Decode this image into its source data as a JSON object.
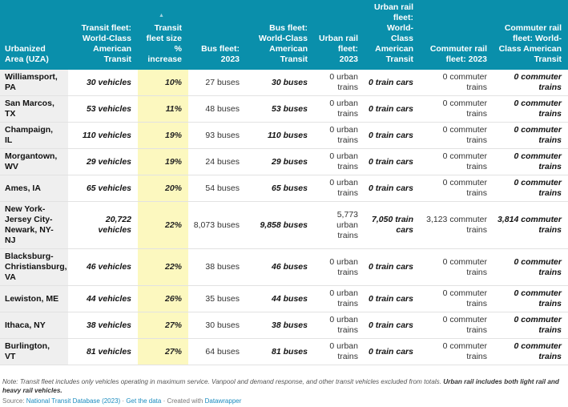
{
  "headers": [
    "Urbanized Area (UZA)",
    "Transit fleet: World-Class American Transit",
    "Transit fleet size % increase",
    "Bus fleet: 2023",
    "Bus fleet: World-Class American Transit",
    "Urban rail fleet: 2023",
    "Urban rail fleet: World-Class American Transit",
    "Commuter rail fleet: 2023",
    "Commuter rail fleet: World-Class American Transit"
  ],
  "sort_icon": "triangle-up-icon",
  "colors": {
    "header": "#0a8fab",
    "highlight": "#fcf8bf",
    "name_col": "#efefef"
  },
  "rows": [
    [
      "Williamsport, PA",
      "30 vehicles",
      "10%",
      "27 buses",
      "30 buses",
      "0 urban trains",
      "0 train cars",
      "0 commuter trains",
      "0 commuter trains"
    ],
    [
      "San Marcos, TX",
      "53 vehicles",
      "11%",
      "48 buses",
      "53 buses",
      "0 urban trains",
      "0 train cars",
      "0 commuter trains",
      "0 commuter trains"
    ],
    [
      "Champaign, IL",
      "110 vehicles",
      "19%",
      "93 buses",
      "110 buses",
      "0 urban trains",
      "0 train cars",
      "0 commuter trains",
      "0 commuter trains"
    ],
    [
      "Morgantown, WV",
      "29 vehicles",
      "19%",
      "24 buses",
      "29 buses",
      "0 urban trains",
      "0 train cars",
      "0 commuter trains",
      "0 commuter trains"
    ],
    [
      "Ames, IA",
      "65 vehicles",
      "20%",
      "54 buses",
      "65 buses",
      "0 urban trains",
      "0 train cars",
      "0 commuter trains",
      "0 commuter trains"
    ],
    [
      "New York-Jersey City-Newark, NY-NJ",
      "20,722 vehicles",
      "22%",
      "8,073 buses",
      "9,858 buses",
      "5,773 urban trains",
      "7,050 train cars",
      "3,123 commuter trains",
      "3,814 commuter trains"
    ],
    [
      "Blacksburg-Christiansburg, VA",
      "46 vehicles",
      "22%",
      "38 buses",
      "46 buses",
      "0 urban trains",
      "0 train cars",
      "0 commuter trains",
      "0 commuter trains"
    ],
    [
      "Lewiston, ME",
      "44 vehicles",
      "26%",
      "35 buses",
      "44 buses",
      "0 urban trains",
      "0 train cars",
      "0 commuter trains",
      "0 commuter trains"
    ],
    [
      "Ithaca, NY",
      "38 vehicles",
      "27%",
      "30 buses",
      "38 buses",
      "0 urban trains",
      "0 train cars",
      "0 commuter trains",
      "0 commuter trains"
    ],
    [
      "Burlington, VT",
      "81 vehicles",
      "27%",
      "64 buses",
      "81 buses",
      "0 urban trains",
      "0 train cars",
      "0 commuter trains",
      "0 commuter trains"
    ]
  ],
  "note": "Note: Transit fleet includes only vehicles operating in maximum service. Vanpool and demand response, and other transit vehicles excluded from totals. ",
  "note_bold": "Urban rail includes both light rail and heavy rail vehicles.",
  "source_label": "Source: ",
  "source_link": "National Transit Database (2023)",
  "sep": " · ",
  "get_data": "Get the data",
  "created_with": "Created with ",
  "datawrapper": "Datawrapper"
}
